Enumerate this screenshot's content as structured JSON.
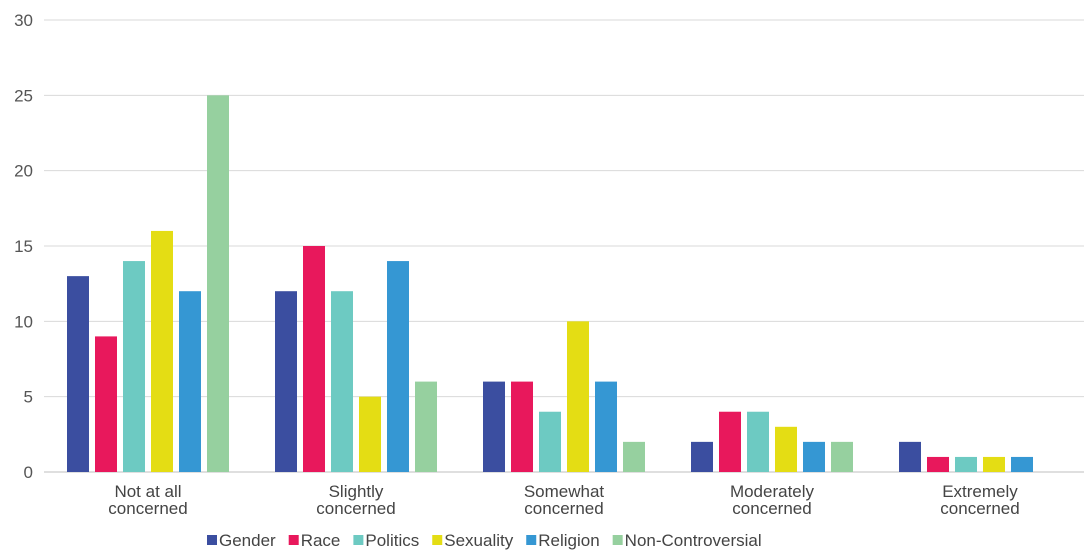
{
  "chart_data": {
    "type": "bar",
    "categories": [
      [
        "Not at all",
        "concerned"
      ],
      [
        "Slightly",
        "concerned"
      ],
      [
        "Somewhat",
        "concerned"
      ],
      [
        "Moderately",
        "concerned"
      ],
      [
        "Extremely",
        "concerned"
      ]
    ],
    "series": [
      {
        "name": "Gender",
        "color": "#3b4ea0",
        "values": [
          13,
          12,
          6,
          2,
          2
        ]
      },
      {
        "name": "Race",
        "color": "#e8185c",
        "values": [
          9,
          15,
          6,
          4,
          1
        ]
      },
      {
        "name": "Politics",
        "color": "#6dcac2",
        "values": [
          14,
          12,
          4,
          4,
          1
        ]
      },
      {
        "name": "Sexuality",
        "color": "#e4dd14",
        "values": [
          16,
          5,
          10,
          3,
          1
        ]
      },
      {
        "name": "Religion",
        "color": "#3597d3",
        "values": [
          12,
          14,
          6,
          2,
          1
        ]
      },
      {
        "name": "Non-Controversial",
        "color": "#96d09f",
        "values": [
          25,
          6,
          2,
          2,
          0
        ]
      }
    ],
    "ylim": [
      0,
      30
    ],
    "yticks": [
      0,
      5,
      10,
      15,
      20,
      25,
      30
    ],
    "grid": true,
    "legend": "bottom",
    "title": "",
    "xlabel": "",
    "ylabel": ""
  }
}
